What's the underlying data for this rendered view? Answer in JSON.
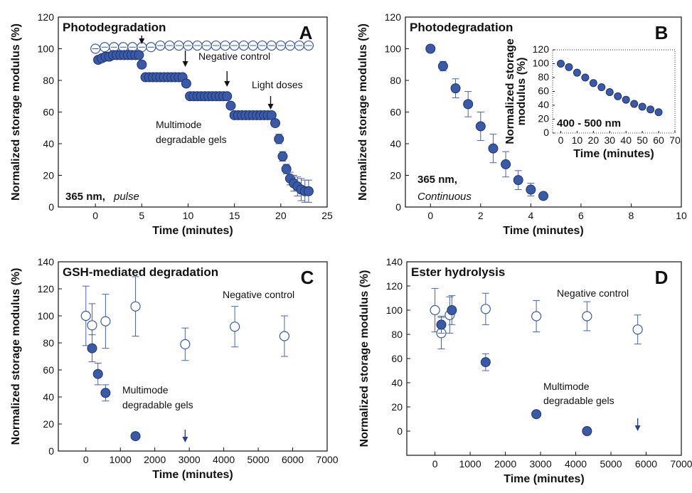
{
  "colors": {
    "filled": "#3a5aa8",
    "filled_stroke": "#1f3470",
    "open_stroke": "#3a5aa8",
    "error": "#4a62b0",
    "arrow": "#111111",
    "arrow_blue": "#2b3f8c"
  },
  "chart_data": [
    {
      "panel": "A",
      "type": "scatter",
      "title": "Photodegradation",
      "xlabel": "Time (minutes)",
      "ylabel": "Normalized storage modulus (%)",
      "xlim": [
        -4,
        25
      ],
      "ylim": [
        0,
        120
      ],
      "xticks": [
        0,
        5,
        10,
        15,
        20,
        25
      ],
      "yticks": [
        0,
        20,
        40,
        60,
        80,
        100,
        120
      ],
      "annotations": {
        "negative_control": "Negative control",
        "light_doses": "Light doses",
        "gels_line1": "Multimode",
        "gels_line2": "degradable gels",
        "wavelength": "365 nm,",
        "mode": "pulse"
      },
      "series": [
        {
          "style": "filled",
          "x": [
            0.3,
            0.7,
            1.1,
            1.5,
            1.9,
            2.3,
            2.7,
            3.1,
            3.5,
            3.9,
            4.3,
            4.7,
            5.0,
            5.4,
            5.8,
            6.2,
            6.6,
            7.0,
            7.4,
            7.8,
            8.2,
            8.6,
            9.0,
            9.4,
            9.8,
            10.2,
            10.6,
            11.0,
            11.4,
            11.8,
            12.2,
            12.6,
            13.0,
            13.4,
            13.8,
            14.2,
            14.6,
            15.0,
            15.4,
            15.8,
            16.2,
            16.6,
            17.0,
            17.4,
            17.8,
            18.2,
            18.6,
            19.0,
            19.4,
            19.8,
            20.2,
            20.6,
            21.0,
            21.4,
            21.8,
            22.2,
            22.6,
            23.0
          ],
          "y": [
            93,
            94,
            95,
            95,
            96,
            96,
            96,
            96,
            96,
            96,
            96,
            96,
            90,
            82,
            82,
            82,
            82,
            82,
            82,
            82,
            82,
            82,
            82,
            82,
            78,
            70,
            70,
            70,
            70,
            70,
            70,
            70,
            70,
            70,
            70,
            70,
            64,
            58,
            58,
            58,
            58,
            58,
            58,
            58,
            58,
            58,
            58,
            58,
            53,
            43,
            32,
            24,
            18,
            15,
            13,
            11,
            10,
            10
          ],
          "err": [
            0,
            0,
            0,
            0,
            0,
            0,
            0,
            0,
            0,
            0,
            0,
            0,
            0,
            0,
            0,
            0,
            0,
            0,
            0,
            0,
            0,
            0,
            0,
            0,
            0,
            0,
            0,
            0,
            0,
            0,
            0,
            0,
            0,
            0,
            0,
            0,
            0,
            1,
            1,
            1,
            1,
            1,
            1,
            1,
            1,
            1,
            1,
            1,
            2,
            3,
            3,
            3,
            4,
            5,
            6,
            7,
            7,
            7
          ]
        },
        {
          "style": "open",
          "x": [
            0,
            1,
            2,
            3,
            4,
            5,
            6,
            7,
            8,
            9,
            10,
            11,
            12,
            13,
            14,
            15,
            16,
            17,
            18,
            19,
            20,
            21,
            22,
            23
          ],
          "y": [
            100,
            101,
            101,
            101,
            101,
            101,
            101,
            102,
            102,
            102,
            102,
            102,
            102,
            102,
            102,
            102,
            102,
            102,
            102,
            102,
            102,
            102,
            102,
            102
          ]
        }
      ],
      "light_dose_arrows_x": [
        5,
        9.7,
        14.2,
        18.9
      ]
    },
    {
      "panel": "B",
      "type": "scatter",
      "title": "Photodegradation",
      "xlabel": "Time (minutes)",
      "ylabel": "Normalized storage modulus (%)",
      "xlim": [
        -1,
        10
      ],
      "ylim": [
        0,
        120
      ],
      "xticks": [
        0,
        2,
        4,
        6,
        8,
        10
      ],
      "yticks": [
        0,
        20,
        40,
        60,
        80,
        100,
        120
      ],
      "annotations": {
        "wavelength": "365 nm,",
        "mode": "Continuous"
      },
      "series": [
        {
          "style": "filled",
          "x": [
            0,
            0.5,
            1.0,
            1.5,
            2.0,
            2.5,
            3.0,
            3.5,
            4.0,
            4.5
          ],
          "y": [
            100,
            89,
            75,
            65,
            51,
            37,
            27,
            17,
            11,
            7
          ],
          "err": [
            0,
            3,
            6,
            8,
            9,
            9,
            8,
            6,
            4,
            2
          ]
        }
      ],
      "inset": {
        "xlabel": "Time (minutes)",
        "ylabel_line1": "Normalized storage",
        "ylabel_line2": "modulus (%)",
        "xlim": [
          -5,
          70
        ],
        "ylim": [
          0,
          120
        ],
        "xticks": [
          0,
          10,
          20,
          30,
          40,
          50,
          60,
          70
        ],
        "yticks": [
          0,
          20,
          40,
          60,
          80,
          100,
          120
        ],
        "label": "400 - 500 nm",
        "x": [
          0,
          5,
          10,
          15,
          20,
          25,
          30,
          35,
          40,
          45,
          50,
          55,
          60
        ],
        "y": [
          100,
          95,
          87,
          80,
          72,
          66,
          59,
          53,
          48,
          42,
          38,
          34,
          30
        ]
      }
    },
    {
      "panel": "C",
      "type": "scatter",
      "title": "GSH-mediated degradation",
      "xlabel": "Time (minutes)",
      "ylabel": "Normalized storage modulus (%)",
      "xlim": [
        -800,
        7000
      ],
      "ylim": [
        0,
        140
      ],
      "xticks": [
        0,
        1000,
        2000,
        3000,
        4000,
        5000,
        6000,
        7000
      ],
      "yticks": [
        0,
        20,
        40,
        60,
        80,
        100,
        120,
        140
      ],
      "annotations": {
        "negative_control": "Negative control",
        "gels_line1": "Multimode",
        "gels_line2": "degradable gels"
      },
      "series": [
        {
          "style": "open",
          "x": [
            0,
            180,
            570,
            1440,
            2880,
            4320,
            5760
          ],
          "y": [
            100,
            93,
            96,
            107,
            79,
            92,
            85
          ],
          "err": [
            22,
            16,
            20,
            22,
            12,
            15,
            15
          ]
        },
        {
          "style": "filled",
          "x": [
            180,
            350,
            570,
            1440
          ],
          "y": [
            76,
            57,
            43,
            11
          ],
          "err": [
            10,
            8,
            6,
            0
          ]
        }
      ],
      "arrow_x": 2880
    },
    {
      "panel": "D",
      "type": "scatter",
      "title": "Ester hydrolysis",
      "xlabel": "Time (minutes)",
      "ylabel": "Normalized storage modulus (%)",
      "xlim": [
        -800,
        7000
      ],
      "ylim": [
        -20,
        140
      ],
      "xticks": [
        0,
        1000,
        2000,
        3000,
        4000,
        5000,
        6000,
        7000
      ],
      "yticks": [
        0,
        20,
        40,
        60,
        80,
        100,
        120,
        140
      ],
      "annotations": {
        "negative_control": "Negative control",
        "gels_line1": "Multimode",
        "gels_line2": "degradable gels"
      },
      "series": [
        {
          "style": "open",
          "x": [
            0,
            180,
            420,
            1440,
            2880,
            4320,
            5760
          ],
          "y": [
            100,
            81,
            96,
            101,
            95,
            95,
            84
          ],
          "err": [
            18,
            13,
            15,
            13,
            13,
            12,
            12
          ]
        },
        {
          "style": "filled",
          "x": [
            180,
            480,
            1440,
            2880,
            4320
          ],
          "y": [
            88,
            100,
            57,
            14,
            0
          ],
          "err": [
            7,
            12,
            7,
            0,
            0
          ]
        }
      ],
      "arrow_x": 5760
    }
  ]
}
